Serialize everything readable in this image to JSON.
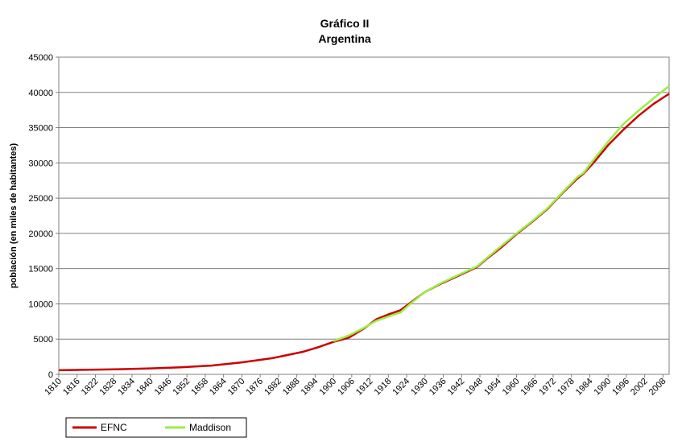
{
  "chart_data": {
    "type": "line",
    "title": "Gráfico II",
    "subtitle": "Argentina",
    "xlabel": "",
    "ylabel": "población (en miles de habitantes)",
    "xlim": [
      1810,
      2010
    ],
    "ylim": [
      0,
      45000
    ],
    "yticks": [
      0,
      5000,
      10000,
      15000,
      20000,
      25000,
      30000,
      35000,
      40000,
      45000
    ],
    "xticks": [
      1810,
      1816,
      1822,
      1828,
      1834,
      1840,
      1846,
      1852,
      1858,
      1864,
      1870,
      1876,
      1882,
      1888,
      1894,
      1900,
      1906,
      1912,
      1918,
      1924,
      1930,
      1936,
      1942,
      1948,
      1954,
      1960,
      1966,
      1972,
      1978,
      1984,
      1990,
      1996,
      2002,
      2008
    ],
    "grid": true,
    "legend_position": "bottom-left",
    "series": [
      {
        "name": "EFNC",
        "color": "#cc0000",
        "x": [
          1810,
          1820,
          1830,
          1840,
          1850,
          1860,
          1870,
          1880,
          1890,
          1895,
          1900,
          1905,
          1910,
          1914,
          1918,
          1922,
          1926,
          1930,
          1935,
          1940,
          1947,
          1950,
          1955,
          1960,
          1965,
          1970,
          1975,
          1980,
          1982,
          1985,
          1990,
          1995,
          2000,
          2005,
          2010
        ],
        "values": [
          580,
          650,
          730,
          850,
          1000,
          1250,
          1700,
          2300,
          3200,
          3850,
          4600,
          5200,
          6500,
          7800,
          8500,
          9100,
          10400,
          11700,
          12800,
          13800,
          15200,
          16300,
          18000,
          19900,
          21600,
          23400,
          25700,
          27800,
          28500,
          29900,
          32500,
          34700,
          36700,
          38400,
          39800
        ]
      },
      {
        "name": "Maddison",
        "color": "#99ee44",
        "x": [
          1900,
          1905,
          1910,
          1914,
          1918,
          1922,
          1926,
          1930,
          1935,
          1940,
          1947,
          1950,
          1955,
          1960,
          1965,
          1970,
          1975,
          1980,
          1982,
          1985,
          1990,
          1995,
          2000,
          2005,
          2010
        ],
        "values": [
          4700,
          5500,
          6600,
          7600,
          8200,
          8800,
          10300,
          11700,
          12900,
          13900,
          15300,
          16400,
          18200,
          20000,
          21700,
          23500,
          25800,
          28000,
          28600,
          30300,
          33000,
          35500,
          37400,
          39200,
          40900
        ]
      }
    ]
  }
}
